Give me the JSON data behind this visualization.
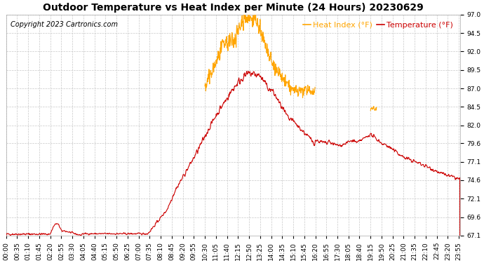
{
  "title": "Outdoor Temperature vs Heat Index per Minute (24 Hours) 20230629",
  "copyright": "Copyright 2023 Cartronics.com",
  "legend_heat": "Heat Index (°F)",
  "legend_temp": "Temperature (°F)",
  "heat_index_color": "#FFA500",
  "temp_color": "#CC0000",
  "background_color": "#ffffff",
  "grid_color": "#c8c8c8",
  "ylim": [
    67.1,
    97.0
  ],
  "yticks": [
    67.1,
    69.6,
    72.1,
    74.6,
    77.1,
    79.6,
    82.0,
    84.5,
    87.0,
    89.5,
    92.0,
    94.5,
    97.0
  ],
  "title_fontsize": 10,
  "copyright_fontsize": 7,
  "legend_fontsize": 8,
  "tick_fontsize": 6.5,
  "linewidth": 0.8
}
